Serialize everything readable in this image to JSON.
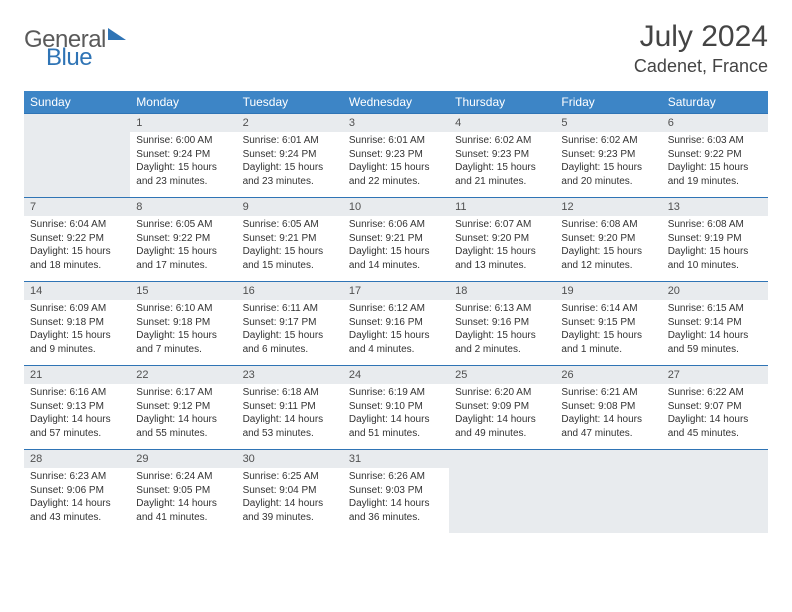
{
  "logo": {
    "general": "General",
    "blue": "Blue"
  },
  "title": {
    "month": "July 2024",
    "location": "Cadenet, France"
  },
  "colors": {
    "header_bg": "#3d85c6",
    "daybar_bg": "#e8ebee",
    "daybar_border": "#2f74b5",
    "text": "#333333",
    "logo_gray": "#5a5a5a",
    "logo_blue": "#2f74b5"
  },
  "day_headers": [
    "Sunday",
    "Monday",
    "Tuesday",
    "Wednesday",
    "Thursday",
    "Friday",
    "Saturday"
  ],
  "weeks": [
    [
      null,
      {
        "n": "1",
        "sr": "Sunrise: 6:00 AM",
        "ss": "Sunset: 9:24 PM",
        "d1": "Daylight: 15 hours",
        "d2": "and 23 minutes."
      },
      {
        "n": "2",
        "sr": "Sunrise: 6:01 AM",
        "ss": "Sunset: 9:24 PM",
        "d1": "Daylight: 15 hours",
        "d2": "and 23 minutes."
      },
      {
        "n": "3",
        "sr": "Sunrise: 6:01 AM",
        "ss": "Sunset: 9:23 PM",
        "d1": "Daylight: 15 hours",
        "d2": "and 22 minutes."
      },
      {
        "n": "4",
        "sr": "Sunrise: 6:02 AM",
        "ss": "Sunset: 9:23 PM",
        "d1": "Daylight: 15 hours",
        "d2": "and 21 minutes."
      },
      {
        "n": "5",
        "sr": "Sunrise: 6:02 AM",
        "ss": "Sunset: 9:23 PM",
        "d1": "Daylight: 15 hours",
        "d2": "and 20 minutes."
      },
      {
        "n": "6",
        "sr": "Sunrise: 6:03 AM",
        "ss": "Sunset: 9:22 PM",
        "d1": "Daylight: 15 hours",
        "d2": "and 19 minutes."
      }
    ],
    [
      {
        "n": "7",
        "sr": "Sunrise: 6:04 AM",
        "ss": "Sunset: 9:22 PM",
        "d1": "Daylight: 15 hours",
        "d2": "and 18 minutes."
      },
      {
        "n": "8",
        "sr": "Sunrise: 6:05 AM",
        "ss": "Sunset: 9:22 PM",
        "d1": "Daylight: 15 hours",
        "d2": "and 17 minutes."
      },
      {
        "n": "9",
        "sr": "Sunrise: 6:05 AM",
        "ss": "Sunset: 9:21 PM",
        "d1": "Daylight: 15 hours",
        "d2": "and 15 minutes."
      },
      {
        "n": "10",
        "sr": "Sunrise: 6:06 AM",
        "ss": "Sunset: 9:21 PM",
        "d1": "Daylight: 15 hours",
        "d2": "and 14 minutes."
      },
      {
        "n": "11",
        "sr": "Sunrise: 6:07 AM",
        "ss": "Sunset: 9:20 PM",
        "d1": "Daylight: 15 hours",
        "d2": "and 13 minutes."
      },
      {
        "n": "12",
        "sr": "Sunrise: 6:08 AM",
        "ss": "Sunset: 9:20 PM",
        "d1": "Daylight: 15 hours",
        "d2": "and 12 minutes."
      },
      {
        "n": "13",
        "sr": "Sunrise: 6:08 AM",
        "ss": "Sunset: 9:19 PM",
        "d1": "Daylight: 15 hours",
        "d2": "and 10 minutes."
      }
    ],
    [
      {
        "n": "14",
        "sr": "Sunrise: 6:09 AM",
        "ss": "Sunset: 9:18 PM",
        "d1": "Daylight: 15 hours",
        "d2": "and 9 minutes."
      },
      {
        "n": "15",
        "sr": "Sunrise: 6:10 AM",
        "ss": "Sunset: 9:18 PM",
        "d1": "Daylight: 15 hours",
        "d2": "and 7 minutes."
      },
      {
        "n": "16",
        "sr": "Sunrise: 6:11 AM",
        "ss": "Sunset: 9:17 PM",
        "d1": "Daylight: 15 hours",
        "d2": "and 6 minutes."
      },
      {
        "n": "17",
        "sr": "Sunrise: 6:12 AM",
        "ss": "Sunset: 9:16 PM",
        "d1": "Daylight: 15 hours",
        "d2": "and 4 minutes."
      },
      {
        "n": "18",
        "sr": "Sunrise: 6:13 AM",
        "ss": "Sunset: 9:16 PM",
        "d1": "Daylight: 15 hours",
        "d2": "and 2 minutes."
      },
      {
        "n": "19",
        "sr": "Sunrise: 6:14 AM",
        "ss": "Sunset: 9:15 PM",
        "d1": "Daylight: 15 hours",
        "d2": "and 1 minute."
      },
      {
        "n": "20",
        "sr": "Sunrise: 6:15 AM",
        "ss": "Sunset: 9:14 PM",
        "d1": "Daylight: 14 hours",
        "d2": "and 59 minutes."
      }
    ],
    [
      {
        "n": "21",
        "sr": "Sunrise: 6:16 AM",
        "ss": "Sunset: 9:13 PM",
        "d1": "Daylight: 14 hours",
        "d2": "and 57 minutes."
      },
      {
        "n": "22",
        "sr": "Sunrise: 6:17 AM",
        "ss": "Sunset: 9:12 PM",
        "d1": "Daylight: 14 hours",
        "d2": "and 55 minutes."
      },
      {
        "n": "23",
        "sr": "Sunrise: 6:18 AM",
        "ss": "Sunset: 9:11 PM",
        "d1": "Daylight: 14 hours",
        "d2": "and 53 minutes."
      },
      {
        "n": "24",
        "sr": "Sunrise: 6:19 AM",
        "ss": "Sunset: 9:10 PM",
        "d1": "Daylight: 14 hours",
        "d2": "and 51 minutes."
      },
      {
        "n": "25",
        "sr": "Sunrise: 6:20 AM",
        "ss": "Sunset: 9:09 PM",
        "d1": "Daylight: 14 hours",
        "d2": "and 49 minutes."
      },
      {
        "n": "26",
        "sr": "Sunrise: 6:21 AM",
        "ss": "Sunset: 9:08 PM",
        "d1": "Daylight: 14 hours",
        "d2": "and 47 minutes."
      },
      {
        "n": "27",
        "sr": "Sunrise: 6:22 AM",
        "ss": "Sunset: 9:07 PM",
        "d1": "Daylight: 14 hours",
        "d2": "and 45 minutes."
      }
    ],
    [
      {
        "n": "28",
        "sr": "Sunrise: 6:23 AM",
        "ss": "Sunset: 9:06 PM",
        "d1": "Daylight: 14 hours",
        "d2": "and 43 minutes."
      },
      {
        "n": "29",
        "sr": "Sunrise: 6:24 AM",
        "ss": "Sunset: 9:05 PM",
        "d1": "Daylight: 14 hours",
        "d2": "and 41 minutes."
      },
      {
        "n": "30",
        "sr": "Sunrise: 6:25 AM",
        "ss": "Sunset: 9:04 PM",
        "d1": "Daylight: 14 hours",
        "d2": "and 39 minutes."
      },
      {
        "n": "31",
        "sr": "Sunrise: 6:26 AM",
        "ss": "Sunset: 9:03 PM",
        "d1": "Daylight: 14 hours",
        "d2": "and 36 minutes."
      },
      null,
      null,
      null
    ]
  ]
}
